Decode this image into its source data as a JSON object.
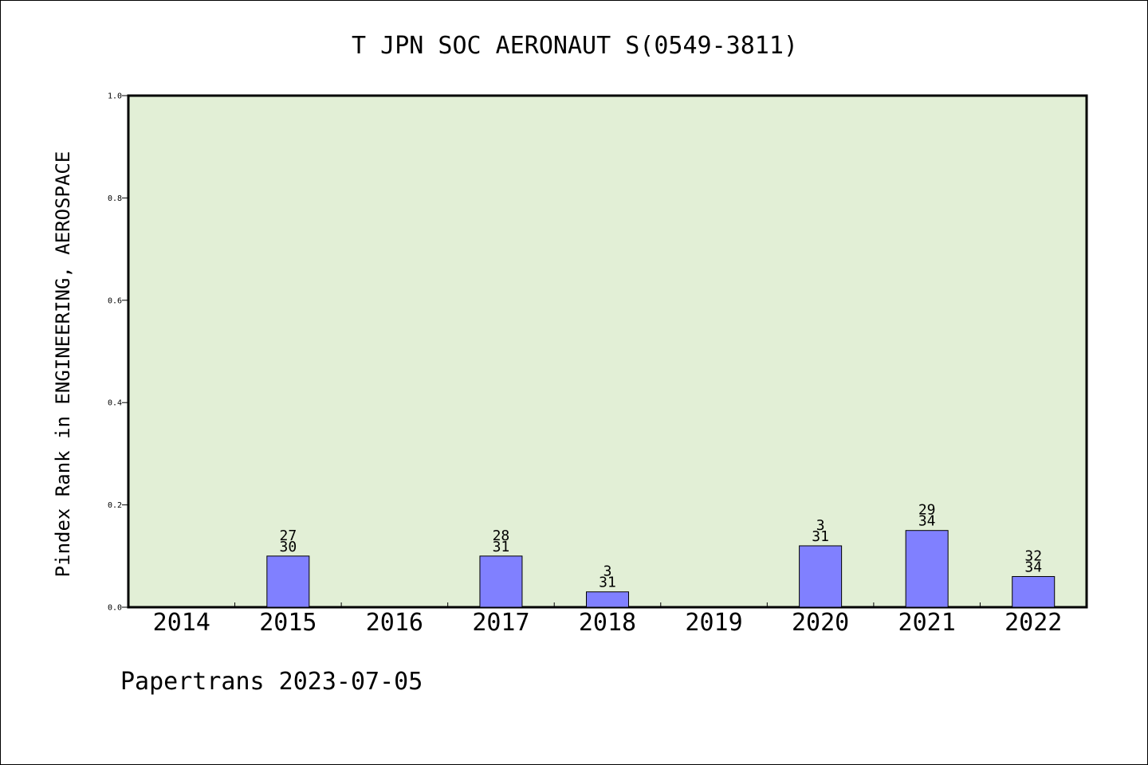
{
  "chart_data": {
    "type": "bar",
    "title": "T JPN SOC AERONAUT S(0549-3811)",
    "xlabel": "",
    "ylabel": "Pindex Rank in ENGINEERING, AEROSPACE",
    "categories": [
      "2014",
      "2015",
      "2016",
      "2017",
      "2018",
      "2019",
      "2020",
      "2021",
      "2022"
    ],
    "values": [
      0,
      0.1,
      0,
      0.1,
      0.03,
      0,
      0.12,
      0.15,
      0.06
    ],
    "rank_labels": [
      "",
      "27",
      "",
      "28",
      "3",
      "",
      "3",
      "29",
      "32"
    ],
    "total_labels": [
      "",
      "30",
      "",
      "31",
      "31",
      "",
      "31",
      "34",
      "34"
    ],
    "ylim": [
      0,
      1.0
    ],
    "yticks": [
      "0.0",
      "0.2",
      "0.4",
      "0.6",
      "0.8",
      "1.0"
    ],
    "grid": false,
    "legend": "none",
    "colors": {
      "plot_background": "#e2efd6",
      "bar_fill": "#8080ff",
      "bar_stroke": "#000000"
    }
  },
  "footer": "Papertrans 2023-07-05"
}
